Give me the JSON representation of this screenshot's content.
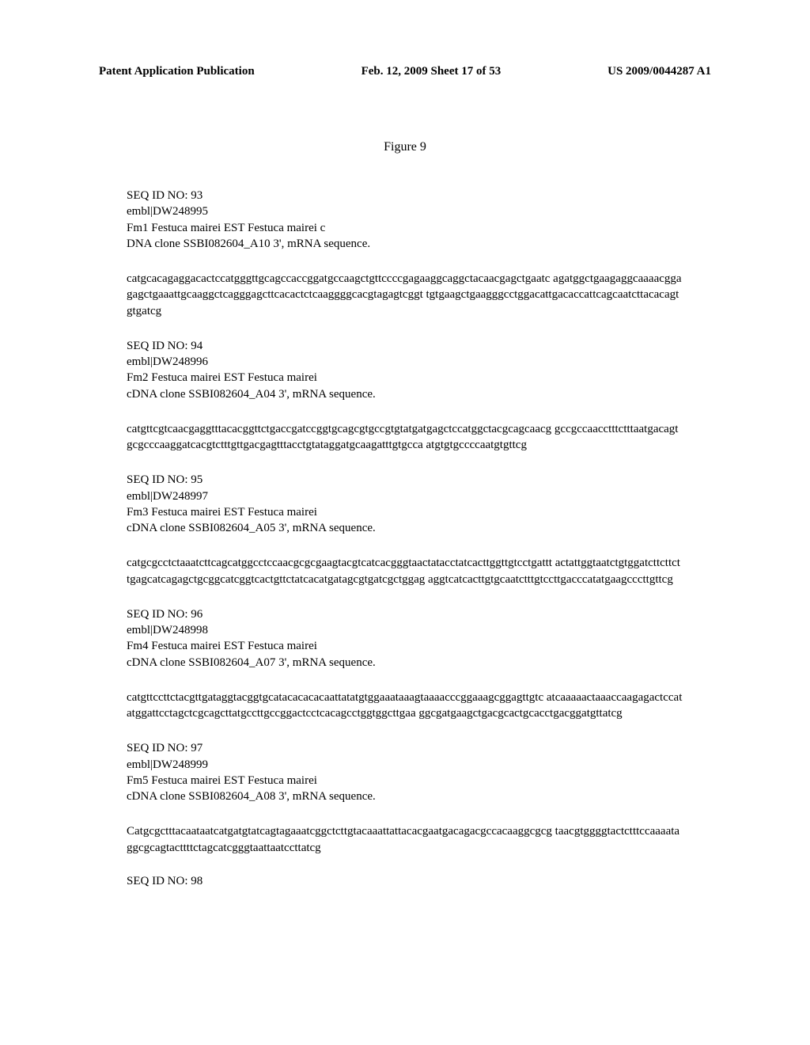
{
  "header": {
    "left": "Patent Application Publication",
    "center": "Feb. 12, 2009  Sheet 17 of 53",
    "right": "US 2009/0044287 A1"
  },
  "figure_title": "Figure 9",
  "sequences": [
    {
      "id": "SEQ ID NO: 93",
      "embl": "embl|DW248995",
      "desc1": "Fm1 Festuca mairei EST Festuca mairei c",
      "desc2": "DNA clone SSBI082604_A10 3', mRNA sequence.",
      "data": "catgcacagaggacactccatgggttgcagccaccggatgccaagctgttccccgagaaggcaggctacaacgagctgaatc agatggctgaagaggcaaaacggagagctgaaattgcaaggctcagggagcttcacactctcaaggggcacgtagagtcggt tgtgaagctgaagggcctggacattgacaccattcagcaatcttacacagtgtgatcg"
    },
    {
      "id": "SEQ ID NO: 94",
      "embl": "embl|DW248996",
      "desc1": "Fm2 Festuca mairei EST Festuca mairei",
      "desc2": "cDNA clone SSBI082604_A04 3', mRNA sequence.",
      "data": "catgttcgtcaacgaggtttacacggttctgaccgatccggtgcagcgtgccgtgtatgatgagctccatggctacgcagcaacg gccgccaacctttctttaatgacagtgcgcccaaggatcacgtctttgttgacgagtttacctgtataggatgcaagatttgtgcca atgtgtgccccaatgtgttcg"
    },
    {
      "id": "SEQ ID NO: 95",
      "embl": "embl|DW248997",
      "desc1": "Fm3 Festuca mairei EST Festuca mairei",
      "desc2": "cDNA clone SSBI082604_A05 3', mRNA sequence.",
      "data": "catgcgcctctaaatcttcagcatggcctccaacgcgcgaagtacgtcatcacgggtaactatacctatcacttggttgtcctgattt actattggtaatctgtggatcttcttcttgagcatcagagctgcggcatcggtcactgttctatcacatgatagcgtgatcgctggag aggtcatcacttgtgcaatctttgtccttgacccatatgaagcccttgttcg"
    },
    {
      "id": "SEQ ID NO: 96",
      "embl": "embl|DW248998",
      "desc1": "Fm4 Festuca mairei EST Festuca mairei",
      "desc2": "cDNA clone SSBI082604_A07 3', mRNA sequence.",
      "data": "catgttccttctacgttgataggtacggtgcatacacacacaattatatgtggaaataaagtaaaacccggaaagcggagttgtc atcaaaaactaaaccaagagactccatatggattcctagctcgcagcttatgccttgccggactcctcacagcctggtggcttgaa ggcgatgaagctgacgcactgcacctgacggatgttatcg"
    },
    {
      "id": "SEQ ID NO: 97",
      "embl": "embl|DW248999",
      "desc1": "Fm5 Festuca mairei EST Festuca mairei",
      "desc2": "cDNA clone SSBI082604_A08 3', mRNA sequence.",
      "data": "Catgcgctttacaataatcatgatgtatcagtagaaatcggctcttgtacaaattattacacgaatgacagacgccacaaggcgcg taacgtggggtactctttccaaaataggcgcagtacttttctagcatcgggtaattaatccttatcg"
    }
  ],
  "final_seq_id": "SEQ ID NO: 98"
}
